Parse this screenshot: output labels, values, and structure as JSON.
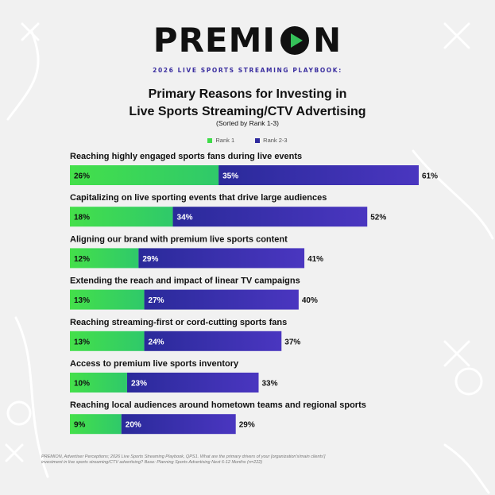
{
  "brand": {
    "logo_prefix": "PREMI",
    "logo_suffix": "N",
    "logo_icon": "play-circle-icon",
    "accent_color": "#35c25a",
    "playbook_label": "2026 LIVE SPORTS STREAMING PLAYBOOK:"
  },
  "chart_data": {
    "type": "bar",
    "orientation": "horizontal",
    "stacked": true,
    "title_line1": "Primary Reasons for Investing in",
    "title_line2": "Live Sports Streaming/CTV Advertising",
    "subtitle": "(Sorted by Rank 1-3)",
    "legend_placement": "top-center",
    "grid": false,
    "xlim": [
      0,
      61
    ],
    "categories": [
      "Reaching highly engaged sports fans during live events",
      "Capitalizing on live sporting events that drive large audiences",
      "Aligning our brand with premium live sports content",
      "Extending the reach and impact of linear TV campaigns",
      "Reaching streaming-first or cord-cutting sports fans",
      "Access to premium live sports inventory",
      "Reaching local audiences around hometown teams and regional sports"
    ],
    "series": [
      {
        "name": "Rank 1",
        "color": "#3fdc49",
        "values": [
          26,
          18,
          12,
          13,
          13,
          10,
          9
        ]
      },
      {
        "name": "Rank 2-3",
        "color": "#2f2a9e",
        "values": [
          35,
          34,
          29,
          27,
          24,
          23,
          20
        ]
      }
    ],
    "totals": [
      61,
      52,
      41,
      40,
      37,
      33,
      29
    ],
    "value_suffix": "%"
  },
  "footnote": "PREMION, Advertiser Perceptions; 2026 Live Sports Streaming Playbook, QPS1. What are the primary drivers of your [organization's/main clients'] investment in live sports streaming/CTV advertising? Base: Planning Sports Advertising Next 6-12 Months (n=222)"
}
